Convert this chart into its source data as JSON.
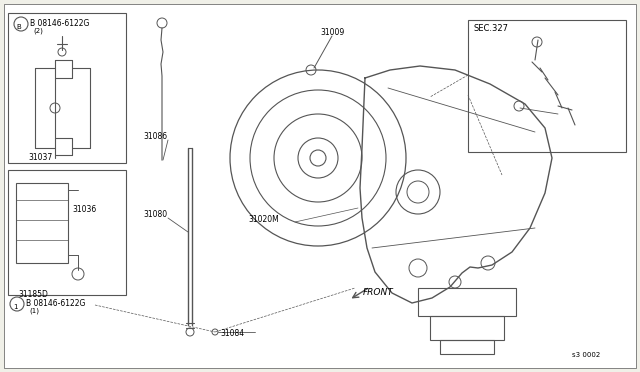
{
  "bg_color": "#f0f0e8",
  "line_color": "#555555",
  "white": "#ffffff",
  "part_labels": {
    "bolt_B": "B 08146-6122G",
    "bolt_B2": "(2)",
    "p31037": "31037",
    "p31036": "31036",
    "p31185D": "31185D",
    "bolt_1": "B 08146-6122G",
    "bolt_12": "(1)",
    "p31086": "31086",
    "p31009": "31009",
    "p31080": "31080",
    "p31020M": "31020M",
    "p31084": "31084",
    "sec327": "SEC.327",
    "s3code": "s3 0002"
  },
  "front_label": "FRONT"
}
